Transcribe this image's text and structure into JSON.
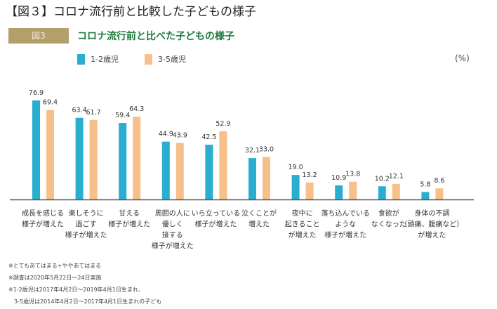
{
  "page_title": "【図３】コロナ流行前と比較した子どもの様子",
  "figure": {
    "badge": "図3",
    "subtitle": "コロナ流行前と比べた子どもの様子",
    "unit": "(%)"
  },
  "colors": {
    "series1": "#2aaed0",
    "series2": "#f7bf8a",
    "axis": "#555555"
  },
  "chart_data": {
    "type": "bar",
    "categories": [
      [
        "成長を感じる",
        "様子が増えた"
      ],
      [
        "楽しそうに",
        "過ごす",
        "様子が増えた"
      ],
      [
        "甘える",
        "様子が増えた"
      ],
      [
        "周囲の人に",
        "優しく",
        "接する",
        "様子が増えた"
      ],
      [
        "いら立っている",
        "様子が増えた"
      ],
      [
        "泣くことが",
        "増えた"
      ],
      [
        "夜中に",
        "起きること",
        "が増えた"
      ],
      [
        "落ち込んでいる",
        "ような",
        "様子が増えた"
      ],
      [
        "食欲が",
        "なくなった"
      ],
      [
        "身体の不調",
        "（頭痛、腹痛など）",
        "が増えた"
      ]
    ],
    "series": [
      {
        "name": "1-2歳児",
        "values": [
          76.9,
          63.4,
          59.4,
          44.9,
          42.5,
          32.1,
          19.0,
          10.9,
          10.2,
          5.8
        ]
      },
      {
        "name": "3-5歳児",
        "values": [
          69.4,
          61.7,
          64.3,
          43.9,
          52.9,
          33.0,
          13.2,
          13.8,
          12.1,
          8.6
        ]
      }
    ],
    "legend": "top-left",
    "grid": false
  },
  "notes": [
    "※とてもあてはまる+ややあてはまる",
    "※調査は2020年5月22日～24日実施",
    "※1-2歳児は2017年4月2日～2019年4月1日生まれ、",
    "　3-5歳児は2014年4月2日～2017年4月1日生まれの子ども"
  ]
}
